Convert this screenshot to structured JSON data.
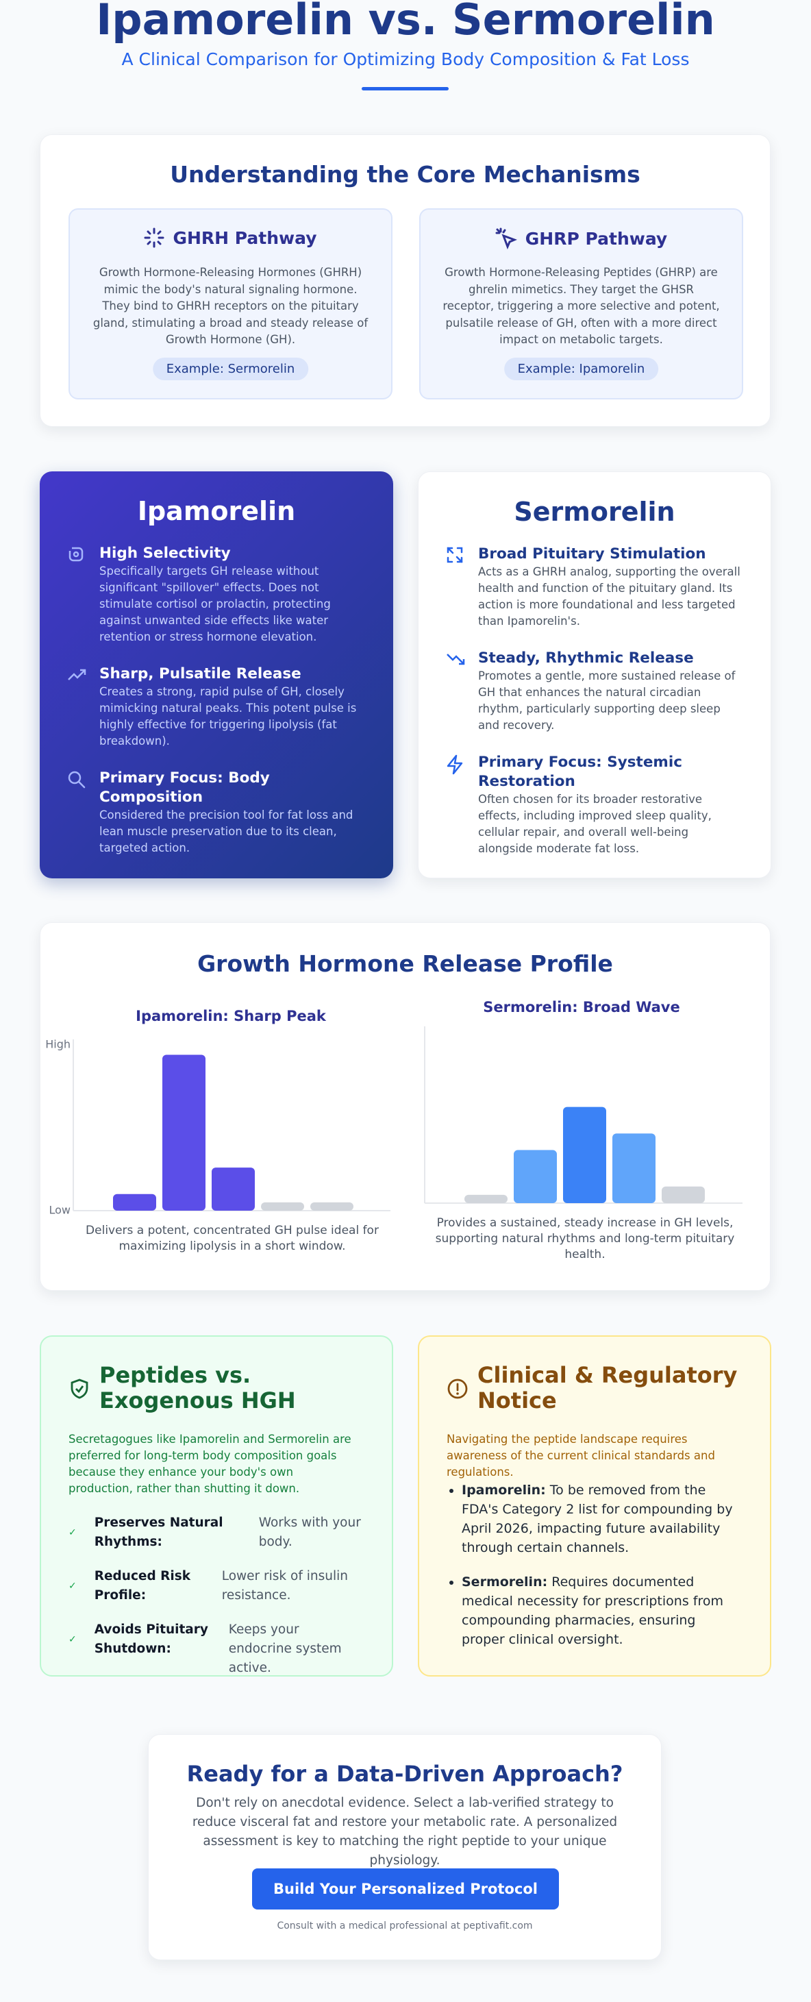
{
  "header": {
    "title": "Ipamorelin vs. Sermorelin",
    "subtitle": "A Clinical Comparison for Optimizing Body Composition & Fat Loss"
  },
  "mechanisms": {
    "title": "Understanding the Core Mechanisms",
    "pathways": [
      {
        "title": "GHRH Pathway",
        "description": "Growth Hormone-Releasing Hormones (GHRH) mimic the body's natural signaling hormone. They bind to GHRH receptors on the pituitary gland, stimulating a broad and steady release of Growth Hormone (GH).",
        "example": "Example: Sermorelin"
      },
      {
        "title": "GHRP Pathway",
        "description": "Growth Hormone-Releasing Peptides (GHRP) are ghrelin mimetics. They target the GHSR receptor, triggering a more selective and potent, pulsatile release of GH, often with a more direct impact on metabolic targets.",
        "example": "Example: Ipamorelin"
      }
    ]
  },
  "peptides": [
    {
      "name": "Ipamorelin",
      "features": [
        {
          "title": "High Selectivity",
          "description": "Specifically targets GH release without significant \"spillover\" effects. Does not stimulate cortisol or prolactin, protecting against unwanted side effects like water retention or stress hormone elevation."
        },
        {
          "title": "Sharp, Pulsatile Release",
          "description": "Creates a strong, rapid pulse of GH, closely mimicking natural peaks. This potent pulse is highly effective for triggering lipolysis (fat breakdown)."
        },
        {
          "title": "Primary Focus: Body Composition",
          "description": "Considered the precision tool for fat loss and lean muscle preservation due to its clean, targeted action."
        }
      ]
    },
    {
      "name": "Sermorelin",
      "features": [
        {
          "title": "Broad Pituitary Stimulation",
          "description": "Acts as a GHRH analog, supporting the overall health and function of the pituitary gland. Its action is more foundational and less targeted than Ipamorelin's."
        },
        {
          "title": "Steady, Rhythmic Release",
          "description": "Promotes a gentle, more sustained release of GH that enhances the natural circadian rhythm, particularly supporting deep sleep and recovery."
        },
        {
          "title": "Primary Focus: Systemic Restoration",
          "description": "Often chosen for its broader restorative effects, including improved sleep quality, cellular repair, and overall well-being alongside moderate fat loss."
        }
      ]
    }
  ],
  "profile": {
    "title": "Growth Hormone Release Profile",
    "charts": [
      {
        "title": "Ipamorelin: Sharp Peak",
        "ylim": [
          0,
          100
        ],
        "yticks": [
          {
            "value": 0,
            "label": "Low"
          },
          {
            "value": 100,
            "label": "High"
          }
        ],
        "values": [
          10,
          94,
          26,
          5,
          5
        ],
        "colors": [
          "#5b4ee8",
          "#5b4ee8",
          "#5b4ee8",
          "#d1d5db",
          "#d1d5db"
        ],
        "caption": "Delivers a potent, concentrated GH pulse ideal for maximizing lipolysis in a short window."
      },
      {
        "title": "Sermorelin: Broad Wave",
        "ylim": [
          0,
          100
        ],
        "values": [
          5,
          32,
          58,
          42,
          10
        ],
        "colors": [
          "#d1d5db",
          "#60a5fa",
          "#3b82f6",
          "#60a5fa",
          "#d1d5db"
        ],
        "caption": "Provides a sustained, steady increase in GH levels, supporting natural rhythms and long-term pituitary health."
      }
    ]
  },
  "benefits": {
    "title": "Peptides vs. Exogenous HGH",
    "intro": "Secretagogues like Ipamorelin and Sermorelin are preferred for long-term body composition goals because they enhance your body's own production, rather than shutting it down.",
    "items": [
      {
        "label": "Preserves Natural Rhythms:",
        "description": "Works with your body."
      },
      {
        "label": "Reduced Risk Profile:",
        "description": "Lower risk of insulin resistance."
      },
      {
        "label": "Avoids Pituitary Shutdown:",
        "description": "Keeps your endocrine system active."
      }
    ]
  },
  "notice": {
    "title": "Clinical & Regulatory Notice",
    "intro": "Navigating the peptide landscape requires awareness of the current clinical standards and regulations.",
    "items": [
      {
        "label": "Ipamorelin:",
        "text": "To be removed from the FDA's Category 2 list for compounding by April 2026, impacting future availability through certain channels."
      },
      {
        "label": "Sermorelin:",
        "text": "Requires documented medical necessity for prescriptions from compounding pharmacies, ensuring proper clinical oversight."
      }
    ]
  },
  "cta": {
    "title": "Ready for a Data-Driven Approach?",
    "body": "Don't rely on anecdotal evidence. Select a lab-verified strategy to reduce visceral fat and restore your metabolic rate. A personalized assessment is key to matching the right peptide to your unique physiology.",
    "button": "Build Your Personalized Protocol",
    "footnote": "Consult with a medical professional at peptivafit.com"
  }
}
